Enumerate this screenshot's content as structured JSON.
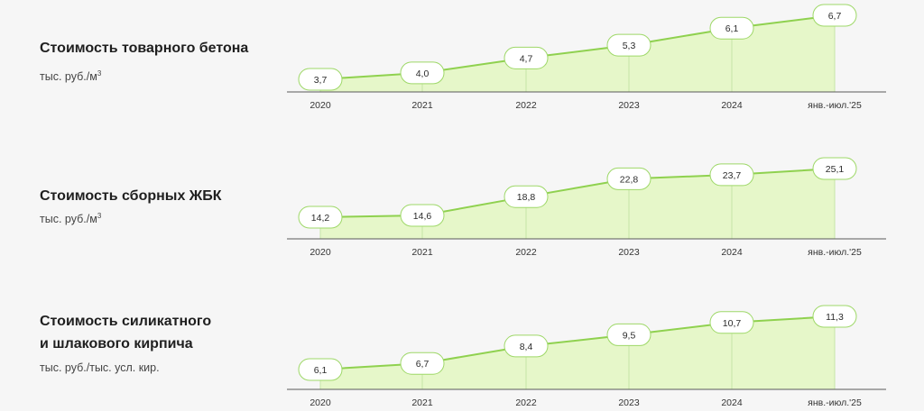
{
  "accent": "#8fd14f",
  "fill": "#e6f7c9",
  "chart_data": [
    {
      "type": "area",
      "title_lines": [
        "Стоимость товарного бетона"
      ],
      "unit_base": "тыс. руб./м",
      "unit_sup": "3",
      "x": [
        "2020",
        "2021",
        "2022",
        "2023",
        "2024",
        "янв.-июл.'25"
      ],
      "values": [
        3.7,
        4.0,
        4.7,
        5.3,
        6.1,
        6.7
      ],
      "value_labels": [
        "3,7",
        "4,0",
        "4,7",
        "5,3",
        "6,1",
        "6,7"
      ]
    },
    {
      "type": "area",
      "title_lines": [
        "Стоимость сборных ЖБК"
      ],
      "unit_base": "тыс. руб./м",
      "unit_sup": "3",
      "x": [
        "2020",
        "2021",
        "2022",
        "2023",
        "2024",
        "янв.-июл.'25"
      ],
      "values": [
        14.2,
        14.6,
        18.8,
        22.8,
        23.7,
        25.1
      ],
      "value_labels": [
        "14,2",
        "14,6",
        "18,8",
        "22,8",
        "23,7",
        "25,1"
      ]
    },
    {
      "type": "area",
      "title_lines": [
        "Стоимость силикатного",
        "и шлакового кирпича"
      ],
      "unit_base": "тыс. руб./тыс. усл. кир.",
      "unit_sup": "",
      "x": [
        "2020",
        "2021",
        "2022",
        "2023",
        "2024",
        "янв.-июл.'25"
      ],
      "values": [
        6.1,
        6.7,
        8.4,
        9.5,
        10.7,
        11.3
      ],
      "value_labels": [
        "6,1",
        "6,7",
        "8,4",
        "9,5",
        "10,7",
        "11,3"
      ]
    }
  ]
}
